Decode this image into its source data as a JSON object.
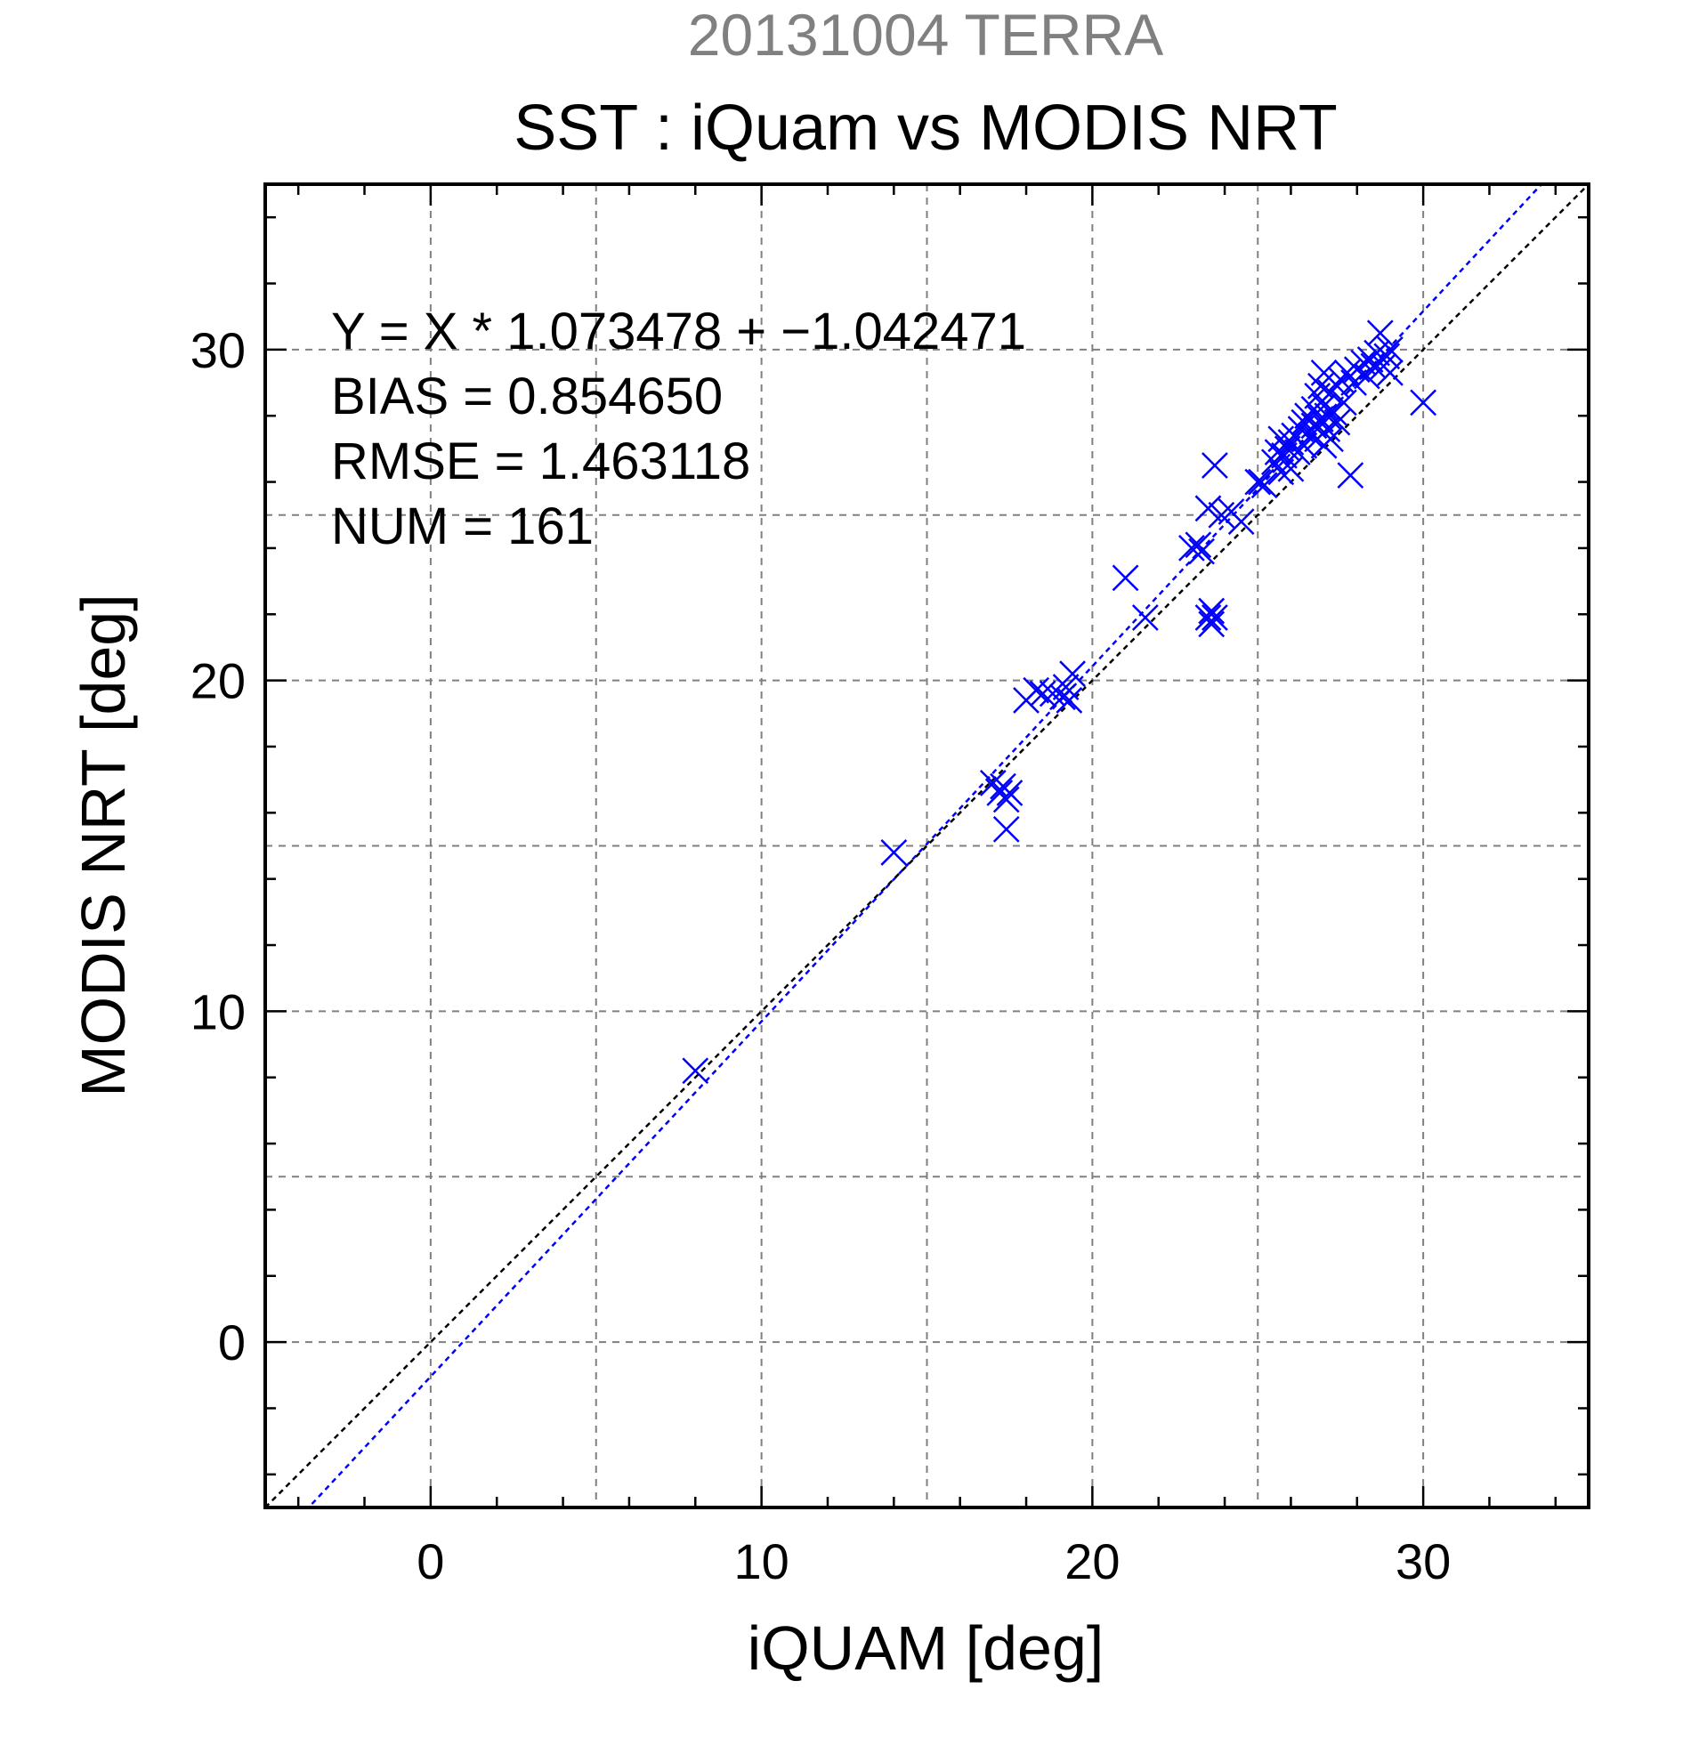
{
  "chart_data": {
    "type": "scatter",
    "title": "20131004 TERRA",
    "subtitle": "SST : iQuam vs MODIS NRT",
    "xlabel": "iQUAM [deg]",
    "ylabel": "MODIS NRT [deg]",
    "xlim": [
      -5,
      35
    ],
    "ylim": [
      -5,
      35
    ],
    "xticks": [
      0,
      10,
      20,
      30
    ],
    "yticks": [
      0,
      10,
      20,
      30
    ],
    "grid": true,
    "colors": {
      "points": "#0000ff",
      "fit_line": "#0000ff",
      "identity_line": "#000000",
      "title": "#808080",
      "grid": "#808080"
    },
    "stats": [
      "Y = X * 1.073478 + −1.042471",
      "BIAS = 0.854650",
      "RMSE = 1.463118",
      "NUM = 161"
    ],
    "lines": [
      {
        "slope": 1.073478,
        "intercept": -1.042471
      },
      {
        "slope": 1,
        "intercept": 0
      }
    ],
    "marker": "x",
    "points": [
      [
        8.0,
        8.2
      ],
      [
        14.0,
        14.8
      ],
      [
        17.0,
        16.9
      ],
      [
        17.2,
        16.6
      ],
      [
        17.3,
        16.8
      ],
      [
        17.4,
        16.4
      ],
      [
        17.4,
        15.5
      ],
      [
        17.5,
        16.6
      ],
      [
        18.0,
        19.4
      ],
      [
        18.3,
        19.7
      ],
      [
        18.5,
        19.6
      ],
      [
        18.8,
        19.6
      ],
      [
        19.1,
        19.5
      ],
      [
        19.2,
        19.8
      ],
      [
        19.3,
        19.4
      ],
      [
        19.4,
        20.2
      ],
      [
        21.0,
        23.1
      ],
      [
        21.6,
        21.9
      ],
      [
        23.0,
        24.0
      ],
      [
        23.2,
        24.1
      ],
      [
        23.3,
        23.9
      ],
      [
        23.5,
        25.2
      ],
      [
        23.5,
        21.9
      ],
      [
        23.6,
        22.1
      ],
      [
        23.6,
        21.7
      ],
      [
        23.7,
        21.9
      ],
      [
        23.7,
        26.5
      ],
      [
        23.9,
        25.0
      ],
      [
        24.2,
        25.1
      ],
      [
        24.5,
        24.8
      ],
      [
        25.0,
        26.0
      ],
      [
        25.1,
        26.0
      ],
      [
        25.2,
        25.9
      ],
      [
        25.5,
        26.6
      ],
      [
        25.6,
        26.9
      ],
      [
        25.7,
        27.3
      ],
      [
        25.7,
        26.3
      ],
      [
        25.8,
        26.8
      ],
      [
        25.9,
        27.0
      ],
      [
        26.0,
        27.2
      ],
      [
        26.0,
        26.4
      ],
      [
        26.1,
        27.4
      ],
      [
        26.2,
        26.9
      ],
      [
        26.3,
        27.6
      ],
      [
        26.4,
        27.8
      ],
      [
        26.4,
        27.1
      ],
      [
        26.5,
        28.0
      ],
      [
        26.6,
        27.4
      ],
      [
        26.7,
        28.2
      ],
      [
        26.7,
        27.7
      ],
      [
        26.8,
        27.3
      ],
      [
        26.8,
        28.6
      ],
      [
        26.9,
        27.9
      ],
      [
        26.9,
        28.9
      ],
      [
        27.0,
        27.1
      ],
      [
        27.0,
        28.3
      ],
      [
        27.0,
        29.3
      ],
      [
        27.1,
        27.6
      ],
      [
        27.1,
        28.0
      ],
      [
        27.2,
        28.7
      ],
      [
        27.2,
        27.3
      ],
      [
        27.3,
        28.1
      ],
      [
        27.4,
        27.8
      ],
      [
        27.4,
        28.9
      ],
      [
        27.5,
        29.1
      ],
      [
        27.6,
        28.4
      ],
      [
        27.7,
        29.3
      ],
      [
        27.8,
        26.2
      ],
      [
        27.9,
        29.0
      ],
      [
        28.0,
        29.4
      ],
      [
        28.2,
        29.6
      ],
      [
        28.3,
        29.2
      ],
      [
        28.4,
        29.7
      ],
      [
        28.5,
        29.5
      ],
      [
        28.6,
        29.9
      ],
      [
        28.7,
        30.5
      ],
      [
        28.8,
        29.5
      ],
      [
        28.9,
        29.8
      ],
      [
        29.0,
        29.3
      ],
      [
        29.0,
        30.0
      ],
      [
        30.0,
        28.4
      ]
    ]
  }
}
